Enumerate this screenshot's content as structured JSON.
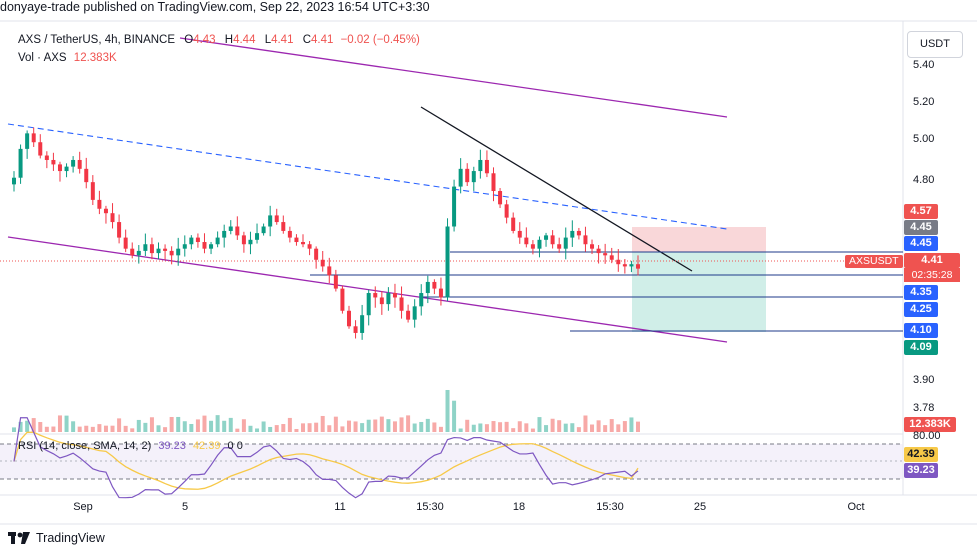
{
  "header": {
    "publisher": "donyaye-trade published on TradingView.com, Sep 22, 2023 16:54 UTC+3:30"
  },
  "legend": {
    "symbol": "AXS / TetherUS, 4h, BINANCE",
    "o_label": "O",
    "o_value": "4.43",
    "h_label": "H",
    "h_value": "4.44",
    "l_label": "L",
    "l_value": "4.41",
    "c_label": "C",
    "c_value": "4.41",
    "change": "−0.02 (−0.45%)",
    "vol_label": "Vol · AXS",
    "vol_value": "12.383K"
  },
  "toolbar": {
    "currency": "USDT"
  },
  "price_axis": {
    "ticks": [
      "5.40",
      "5.20",
      "5.00",
      "4.80",
      "3.90",
      "3.78"
    ],
    "labels": [
      {
        "text": "4.57",
        "color": "#ef5350"
      },
      {
        "text": "4.45",
        "color": "#787b86"
      },
      {
        "text": "4.45",
        "color": "#2962ff"
      },
      {
        "text": "4.41",
        "color": "#ef5350"
      },
      {
        "text": "4.35",
        "color": "#2962ff"
      },
      {
        "text": "4.25",
        "color": "#2962ff"
      },
      {
        "text": "4.10",
        "color": "#2962ff"
      },
      {
        "text": "4.09",
        "color": "#089981"
      }
    ],
    "symbol_tag": "AXSUSDT",
    "countdown": "02:35:28",
    "volume_tag": "12.383K"
  },
  "rsi": {
    "legend": "RSI (14, close, SMA, 14, 2)",
    "value1": "39.23",
    "value2": "42.39",
    "tail": "0  0",
    "axis_top": "80.00",
    "label_sma": "42.39",
    "label_rsi": "39.23"
  },
  "time_axis": [
    "Sep",
    "5",
    "11",
    "15:30",
    "18",
    "15:30",
    "25",
    "Oct"
  ],
  "footer": {
    "brand": "TradingView"
  },
  "chart_data": {
    "type": "candlestick",
    "symbol": "AXS / TetherUS",
    "interval": "4h",
    "exchange": "BINANCE",
    "last_price": 4.41,
    "ylim": [
      3.75,
      5.45
    ],
    "closes": [
      4.82,
      4.95,
      5.02,
      4.98,
      4.92,
      4.9,
      4.88,
      4.85,
      4.87,
      4.9,
      4.86,
      4.8,
      4.72,
      4.68,
      4.66,
      4.62,
      4.55,
      4.5,
      4.47,
      4.49,
      4.52,
      4.48,
      4.5,
      4.49,
      4.47,
      4.5,
      4.52,
      4.55,
      4.53,
      4.5,
      4.52,
      4.55,
      4.58,
      4.6,
      4.56,
      4.52,
      4.54,
      4.57,
      4.6,
      4.65,
      4.62,
      4.58,
      4.55,
      4.53,
      4.52,
      4.5,
      4.45,
      4.42,
      4.38,
      4.32,
      4.22,
      4.15,
      4.12,
      4.2,
      4.3,
      4.28,
      4.25,
      4.3,
      4.28,
      4.22,
      4.18,
      4.24,
      4.3,
      4.35,
      4.32,
      4.28,
      4.6,
      4.78,
      4.86,
      4.8,
      4.85,
      4.9,
      4.84,
      4.76,
      4.7,
      4.64,
      4.58,
      4.55,
      4.52,
      4.5,
      4.54,
      4.56,
      4.52,
      4.5,
      4.55,
      4.58,
      4.56,
      4.52,
      4.5,
      4.48,
      4.47,
      4.45,
      4.43,
      4.42,
      4.43,
      4.41
    ],
    "volume_last": "12.383K",
    "rsi": {
      "last": 39.23,
      "sma": 42.39,
      "ylim": [
        0,
        100
      ],
      "upper_band": 70,
      "lower_band": 30
    },
    "drawings": {
      "channel_upper": "descending purple line",
      "channel_lower": "descending purple line",
      "dashed_trendline": "descending blue dashed",
      "black_trendline": "descending resistance",
      "horizontal_levels": [
        4.45,
        4.35,
        4.25,
        4.1
      ],
      "short_position": {
        "entry": 4.45,
        "stop": 4.57,
        "target": 4.09
      }
    }
  }
}
